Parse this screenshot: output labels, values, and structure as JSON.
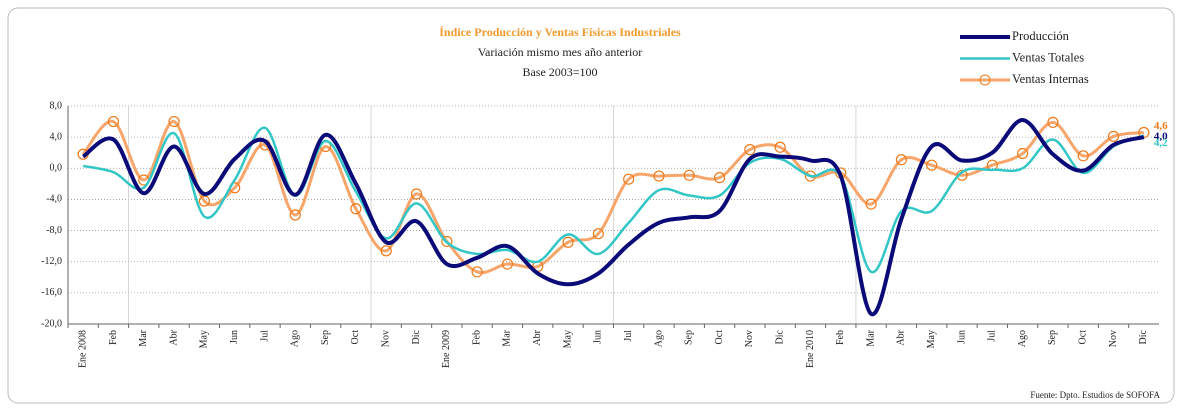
{
  "chart_data": {
    "type": "line",
    "title": "Índice  Producción y Ventas Físicas Industriales",
    "subtitle": [
      "Variación mismo mes año anterior",
      "Base 2003=100"
    ],
    "source": "Fuente: Dpto. Estudios  de SOFOFA",
    "categories": [
      "Ene 2008",
      "Feb",
      "Mar",
      "Abr",
      "May",
      "Jun",
      "Jul",
      "Ago",
      "Sep",
      "Oct",
      "Nov",
      "Dic",
      "Ene 2009",
      "Feb",
      "Mar",
      "Abr",
      "May",
      "Jun",
      "Jul",
      "Ago",
      "Sep",
      "Oct",
      "Nov",
      "Dic",
      "Ene 2010",
      "Feb",
      "Mar",
      "Abr",
      "May",
      "Jun",
      "Jul",
      "Ago",
      "Sep",
      "Oct",
      "Nov",
      "Dic"
    ],
    "series": [
      {
        "name": "Producción",
        "color": "#0a0a78",
        "width": 4,
        "marker": false,
        "values": [
          1.5,
          3.7,
          -3.2,
          2.8,
          -3.3,
          1.2,
          3.5,
          -3.4,
          4.3,
          -2.0,
          -9.5,
          -6.8,
          -12.3,
          -11.5,
          -10.0,
          -13.5,
          -14.9,
          -13.5,
          -9.8,
          -7.0,
          -6.3,
          -5.5,
          1.2,
          1.5,
          1.0,
          -1.0,
          -18.7,
          -6.5,
          2.8,
          1.0,
          2.0,
          6.2,
          1.8,
          -0.3,
          3.0,
          4.0
        ],
        "value_labels": [
          null,
          null,
          null,
          null,
          null,
          null,
          null,
          null,
          null,
          null,
          null,
          null,
          null,
          null,
          null,
          null,
          null,
          null,
          null,
          null,
          null,
          null,
          null,
          null,
          null,
          null,
          null,
          null,
          null,
          null,
          null,
          null,
          null,
          null,
          null,
          "4,0"
        ]
      },
      {
        "name": "Ventas Totales",
        "color": "#33c6c6",
        "width": 2.5,
        "marker": false,
        "values": [
          0.3,
          -0.5,
          -2.5,
          4.5,
          -6.2,
          -1.5,
          5.2,
          -3.5,
          3.5,
          -3.0,
          -9.0,
          -4.5,
          -9.5,
          -11.0,
          -10.5,
          -12.0,
          -8.5,
          -11.0,
          -7.0,
          -2.8,
          -3.5,
          -3.5,
          0.7,
          1.2,
          -1.0,
          -1.0,
          -13.3,
          -5.5,
          -5.5,
          -0.5,
          -0.2,
          0.0,
          3.7,
          -0.6,
          2.8,
          4.2
        ],
        "value_labels": [
          null,
          null,
          null,
          null,
          null,
          null,
          null,
          null,
          null,
          null,
          null,
          null,
          null,
          null,
          null,
          null,
          null,
          null,
          null,
          null,
          null,
          null,
          null,
          null,
          null,
          null,
          null,
          null,
          null,
          null,
          null,
          null,
          null,
          null,
          null,
          "4,2"
        ]
      },
      {
        "name": "Ventas Internas",
        "color": "#f7a56a",
        "width": 3,
        "marker": true,
        "values": [
          1.8,
          6.0,
          -1.5,
          6.0,
          -4.2,
          -2.5,
          3.0,
          -6.0,
          2.8,
          -5.2,
          -10.6,
          -3.3,
          -9.4,
          -13.3,
          -12.3,
          -12.6,
          -9.5,
          -8.4,
          -1.4,
          -1.0,
          -0.9,
          -1.2,
          2.4,
          2.7,
          -1.0,
          -0.6,
          -4.6,
          1.1,
          0.4,
          -0.9,
          0.4,
          1.9,
          5.9,
          1.6,
          4.1,
          4.6
        ],
        "value_labels": [
          null,
          null,
          null,
          null,
          null,
          null,
          null,
          null,
          null,
          null,
          null,
          null,
          null,
          null,
          null,
          null,
          null,
          null,
          null,
          null,
          null,
          null,
          null,
          null,
          null,
          null,
          null,
          null,
          null,
          null,
          null,
          null,
          null,
          null,
          null,
          "4,6"
        ]
      }
    ],
    "ylim": [
      -20,
      8
    ],
    "yticks": [
      {
        "value": 8,
        "label": "8,0"
      },
      {
        "value": 4,
        "label": "4,0"
      },
      {
        "value": 0,
        "label": "0,0"
      },
      {
        "value": -4,
        "label": "-4,0"
      },
      {
        "value": -8,
        "label": "-8,0"
      },
      {
        "value": -12,
        "label": "-12,0"
      },
      {
        "value": -16,
        "label": "-16,0"
      },
      {
        "value": -20,
        "label": "-20,0"
      }
    ],
    "grid": true,
    "legend": "top-right"
  }
}
